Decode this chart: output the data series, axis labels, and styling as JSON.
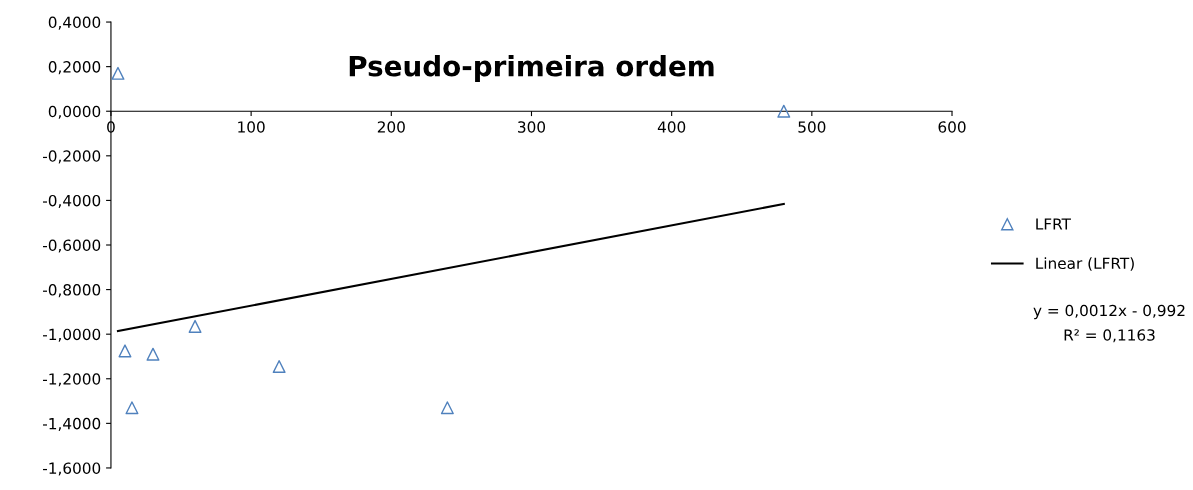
{
  "chart_data": {
    "type": "scatter",
    "title": "Pseudo-primeira ordem",
    "series": [
      {
        "name": "LFRT",
        "color": "#4f81bd",
        "marker": "triangle",
        "x": [
          5,
          10,
          15,
          30,
          60,
          120,
          240,
          480
        ],
        "values": [
          0.17,
          -1.075,
          -1.33,
          -1.09,
          -0.965,
          -1.145,
          -1.33,
          0
        ]
      },
      {
        "name": "Linear (LFRT)",
        "type": "line",
        "color": "#000000",
        "marker": "none",
        "x": [
          5,
          480
        ],
        "values": [
          -0.986,
          -0.416
        ]
      }
    ],
    "xlim": [
      0,
      600
    ],
    "xticks": [
      0,
      100,
      200,
      300,
      400,
      500,
      600
    ],
    "ylim": [
      -1.6,
      0.4
    ],
    "yticks": [
      {
        "value": -1.6,
        "label": "-1,6000"
      },
      {
        "value": -1.4,
        "label": "-1,4000"
      },
      {
        "value": -1.2,
        "label": "-1,2000"
      },
      {
        "value": -1.0,
        "label": "-1,0000"
      },
      {
        "value": -0.8,
        "label": "-0,8000"
      },
      {
        "value": -0.6,
        "label": "-0,6000"
      },
      {
        "value": -0.4,
        "label": "-0,4000"
      },
      {
        "value": -0.2,
        "label": "-0,2000"
      },
      {
        "value": 0,
        "label": "0,0000"
      },
      {
        "value": 0.2,
        "label": "0,2000"
      },
      {
        "value": 0.4,
        "label": "0,4000"
      }
    ],
    "annotations": [
      "y = 0,0012x - 0,992",
      "R² = 0,1163"
    ],
    "legend": "right",
    "grid": false
  }
}
